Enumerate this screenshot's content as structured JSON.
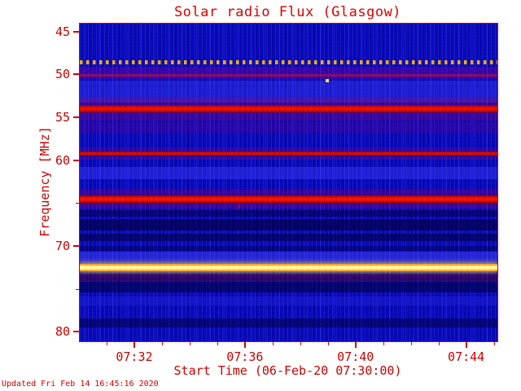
{
  "footer": {
    "updated": "Updated Fri Feb 14 16:45:16 2020"
  },
  "chart_data": {
    "type": "heatmap",
    "subtype": "radio-spectrogram",
    "title": "Solar radio Flux (Glasgow)",
    "xlabel": "Start Time (06-Feb-20 07:30:00)",
    "ylabel": "Frequency [MHz]",
    "colors": {
      "accent": "#cc0000",
      "plot_background": "#0808c4",
      "title_color": "#dd0000"
    },
    "x_range_minutes": [
      0,
      15.1
    ],
    "x_ticks_major": [
      {
        "label": "07:32",
        "t": 2
      },
      {
        "label": "07:36",
        "t": 6
      },
      {
        "label": "07:40",
        "t": 10
      },
      {
        "label": "07:44",
        "t": 14
      }
    ],
    "x_ticks_minor": [
      1,
      3,
      4,
      5,
      7,
      8,
      9,
      11,
      12,
      13,
      15
    ],
    "y_range": [
      44.0,
      81.0
    ],
    "y_axis_inverted": true,
    "y_ticks_major": [
      45,
      50,
      55,
      60,
      70,
      80
    ],
    "y_ticks_minor": [
      65,
      75
    ],
    "grid": false,
    "legend": "none",
    "bands": [
      {
        "freq": 48.5,
        "width": 0.4,
        "style": "dashes",
        "color": "#ffaa00",
        "desc": "periodic orange calibration dashes near 48.5 MHz"
      },
      {
        "freq": 49.75,
        "width": 1.5,
        "color": "rgba(120,0,150,0.40)",
        "desc": "purple haze band"
      },
      {
        "freq": 50.05,
        "width": 0.3,
        "color": "rgba(200,20,40,0.55)",
        "desc": "faint red interference line"
      },
      {
        "freq": 51.9,
        "width": 2.6,
        "color": "rgba(60,60,250,0.40)",
        "desc": "brighter blue striated region"
      },
      {
        "freq": 53.95,
        "width": 2.6,
        "color": "rgba(160,0,90,0.30)",
        "desc": "reddish haze around 54 MHz"
      },
      {
        "freq": 53.95,
        "width": 0.85,
        "color": "#9c0000",
        "core": "#ec1000",
        "desc": "strong red RFI band ~54 MHz"
      },
      {
        "freq": 56.1,
        "width": 1.2,
        "color": "rgba(140,0,120,0.22)",
        "desc": "faint purple haze"
      },
      {
        "freq": 59.15,
        "width": 1.4,
        "color": "rgba(150,0,90,0.25)",
        "desc": "haze around 59 MHz"
      },
      {
        "freq": 59.15,
        "width": 0.5,
        "color": "#940000",
        "core": "#d90e00",
        "desc": "red RFI band ~59 MHz"
      },
      {
        "freq": 61.4,
        "width": 1.4,
        "color": "rgba(60,60,250,0.45)",
        "desc": "brighter blue band"
      },
      {
        "freq": 64.45,
        "width": 2.2,
        "color": "rgba(160,0,80,0.30)",
        "desc": "haze around 64.5 MHz"
      },
      {
        "freq": 64.45,
        "width": 0.8,
        "color": "#a40000",
        "core": "#f41400",
        "desc": "strong red RFI band ~64.5 MHz"
      },
      {
        "freq": 66.1,
        "width": 0.7,
        "color": "rgba(0,0,70,0.55)",
        "desc": "dark lane"
      },
      {
        "freq": 67.45,
        "width": 1.3,
        "color": "rgba(0,0,60,0.65)",
        "desc": "dark navy band"
      },
      {
        "freq": 68.9,
        "width": 0.9,
        "color": "rgba(0,0,65,0.60)",
        "desc": "dark navy band"
      },
      {
        "freq": 70.2,
        "width": 0.6,
        "color": "rgba(0,0,70,0.45)",
        "desc": "dark lane"
      },
      {
        "freq": 71.3,
        "width": 1.5,
        "color": "rgba(70,70,255,0.45)",
        "desc": "brighter blue band"
      },
      {
        "freq": 72.45,
        "width": 0.85,
        "color": "#ff8c00",
        "core": "#ffffaa",
        "glow": "rgba(255,210,60,0.85)",
        "desc": "very strong yellow-white band ~72.5 MHz"
      },
      {
        "freq": 73.55,
        "width": 0.8,
        "color": "rgba(70,0,50,0.55)",
        "desc": "dark red-brown lane"
      },
      {
        "freq": 74.7,
        "width": 1.2,
        "color": "rgba(0,0,65,0.60)",
        "desc": "dark navy band"
      },
      {
        "freq": 76.3,
        "width": 1.0,
        "color": "rgba(40,40,230,0.35)",
        "desc": "slightly brighter blue band"
      },
      {
        "freq": 78.85,
        "width": 1.1,
        "color": "rgba(0,0,70,0.55)",
        "desc": "dark band near bottom"
      }
    ],
    "points": [
      {
        "name": "yellow-point-burst",
        "t": 8.95,
        "f": 50.6,
        "w": 4,
        "h": 4,
        "color": "#ffe34d",
        "desc": "isolated bright yellow pixel ~07:39, 50.6 MHz"
      },
      {
        "name": "red-vertical-streak",
        "t": 5.78,
        "f": 65.1,
        "w": 2,
        "h": 9,
        "color": "#b00020",
        "desc": "narrow red vertical streak ~07:36, 65 MHz"
      }
    ]
  }
}
